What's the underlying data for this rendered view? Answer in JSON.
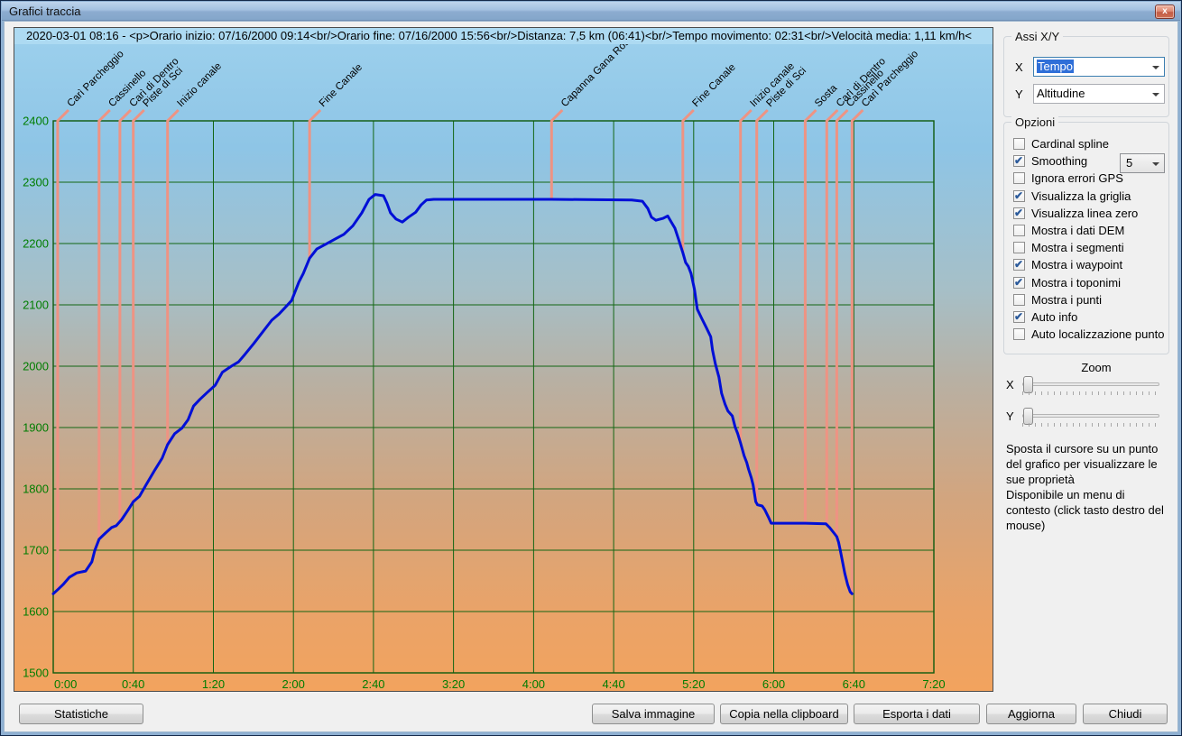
{
  "window": {
    "title": "Grafici traccia",
    "close_glyph": "x"
  },
  "info_bar": {
    "text": "2020-03-01 08:16 - <p>Orario inizio: 07/16/2000 09:14<br/>Orario fine: 07/16/2000 15:56<br/>Distanza: 7,5 km (06:41)<br/>Tempo movimento: 02:31<br/>Velocità media: 1,11 km/h<"
  },
  "axes_panel": {
    "title": "Assi X/Y",
    "x_label": "X",
    "x_value": "Tempo",
    "y_label": "Y",
    "y_value": "Altitudine"
  },
  "options_panel": {
    "title": "Opzioni",
    "smoothing_value": "5",
    "items": [
      {
        "label": "Cardinal spline",
        "checked": false,
        "has_combo": false
      },
      {
        "label": "Smoothing",
        "checked": true,
        "has_combo": true
      },
      {
        "label": "Ignora errori GPS",
        "checked": false,
        "has_combo": false
      },
      {
        "label": "Visualizza la griglia",
        "checked": true,
        "has_combo": false
      },
      {
        "label": "Visualizza linea zero",
        "checked": true,
        "has_combo": false
      },
      {
        "label": "Mostra i dati DEM",
        "checked": false,
        "has_combo": false
      },
      {
        "label": "Mostra i segmenti",
        "checked": false,
        "has_combo": false
      },
      {
        "label": "Mostra i waypoint",
        "checked": true,
        "has_combo": false
      },
      {
        "label": "Mostra i toponimi",
        "checked": true,
        "has_combo": false
      },
      {
        "label": "Mostra i punti",
        "checked": false,
        "has_combo": false
      },
      {
        "label": "Auto info",
        "checked": true,
        "has_combo": false
      },
      {
        "label": "Auto localizzazione punto",
        "checked": false,
        "has_combo": false
      }
    ]
  },
  "zoom_panel": {
    "title": "Zoom",
    "x_label": "X",
    "y_label": "Y"
  },
  "help": {
    "line1": "Sposta il cursore su un punto del grafico per visualizzare le sue proprietà",
    "line2": "Disponibile un menu di contesto (click tasto destro del mouse)"
  },
  "buttons": {
    "statistics": "Statistiche",
    "save_image": "Salva immagine",
    "copy_clipboard": "Copia nella clipboard",
    "export_data": "Esporta i dati",
    "refresh": "Aggiorna",
    "close": "Chiudi"
  },
  "chart_data": {
    "type": "line",
    "title": "",
    "xlabel": "Tempo",
    "ylabel": "Altitudine",
    "xlim_minutes": [
      0,
      440
    ],
    "x_tick_step_minutes": 40,
    "x_tick_labels": [
      "0:00",
      "0:40",
      "1:20",
      "2:00",
      "2:40",
      "3:20",
      "4:00",
      "4:40",
      "5:20",
      "6:00",
      "6:40",
      "7:20"
    ],
    "ylim": [
      1500,
      2400
    ],
    "y_tick_step": 100,
    "grid": true,
    "legend": "none",
    "colors": {
      "track": "#000fd6",
      "grid": "#136613",
      "plot_border": "#0e5a0e",
      "tick_label": "#007d00",
      "waypoint_line": "#ee9383",
      "waypoint_label": "#000000"
    },
    "series": [
      {
        "name": "Altitudine",
        "points_time_min_alt_m": [
          [
            0,
            1629
          ],
          [
            2.7,
            1637
          ],
          [
            4.9,
            1644
          ],
          [
            8.1,
            1656
          ],
          [
            11.7,
            1663
          ],
          [
            16.2,
            1666
          ],
          [
            19.3,
            1681
          ],
          [
            20.7,
            1699
          ],
          [
            22.9,
            1718
          ],
          [
            26.1,
            1728
          ],
          [
            29.2,
            1737
          ],
          [
            31.5,
            1740
          ],
          [
            34.2,
            1750
          ],
          [
            37.3,
            1765
          ],
          [
            40,
            1779
          ],
          [
            43.1,
            1788
          ],
          [
            46.3,
            1806
          ],
          [
            50.8,
            1831
          ],
          [
            54.4,
            1850
          ],
          [
            57.1,
            1872
          ],
          [
            60.7,
            1890
          ],
          [
            64.3,
            1899
          ],
          [
            67.4,
            1913
          ],
          [
            70.1,
            1935
          ],
          [
            73.3,
            1946
          ],
          [
            76.9,
            1957
          ],
          [
            80.9,
            1969
          ],
          [
            84.5,
            1990
          ],
          [
            89,
            2000
          ],
          [
            92.6,
            2007
          ],
          [
            95.7,
            2019
          ],
          [
            100.2,
            2037
          ],
          [
            104.7,
            2056
          ],
          [
            109.2,
            2075
          ],
          [
            112.8,
            2085
          ],
          [
            116,
            2096
          ],
          [
            119.1,
            2107
          ],
          [
            122.7,
            2137
          ],
          [
            124.9,
            2151
          ],
          [
            128.1,
            2176
          ],
          [
            131.7,
            2191
          ],
          [
            136.2,
            2199
          ],
          [
            140.7,
            2207
          ],
          [
            145.2,
            2215
          ],
          [
            149.7,
            2229
          ],
          [
            154.2,
            2250
          ],
          [
            157.8,
            2272
          ],
          [
            160.9,
            2280
          ],
          [
            165,
            2278
          ],
          [
            166.7,
            2266
          ],
          [
            168.5,
            2250
          ],
          [
            171.2,
            2240
          ],
          [
            174.4,
            2235
          ],
          [
            177.5,
            2243
          ],
          [
            181.1,
            2251
          ],
          [
            183.8,
            2263
          ],
          [
            186.5,
            2271
          ],
          [
            190.1,
            2272
          ],
          [
            249,
            2272
          ],
          [
            289,
            2271
          ],
          [
            294.4,
            2269
          ],
          [
            297.1,
            2257
          ],
          [
            298.9,
            2243
          ],
          [
            301.1,
            2238
          ],
          [
            304.7,
            2241
          ],
          [
            307,
            2245
          ],
          [
            308.8,
            2235
          ],
          [
            310.6,
            2225
          ],
          [
            312.4,
            2207
          ],
          [
            314.6,
            2185
          ],
          [
            316,
            2169
          ],
          [
            317.3,
            2163
          ],
          [
            318.7,
            2151
          ],
          [
            320.4,
            2125
          ],
          [
            321.8,
            2093
          ],
          [
            324,
            2078
          ],
          [
            326.3,
            2063
          ],
          [
            328.5,
            2048
          ],
          [
            329.4,
            2026
          ],
          [
            330.8,
            2004
          ],
          [
            332.6,
            1982
          ],
          [
            333.9,
            1956
          ],
          [
            335.7,
            1938
          ],
          [
            337.1,
            1927
          ],
          [
            339.3,
            1919
          ],
          [
            340.7,
            1901
          ],
          [
            342,
            1890
          ],
          [
            343.4,
            1875
          ],
          [
            345.2,
            1854
          ],
          [
            346.5,
            1843
          ],
          [
            347.4,
            1832
          ],
          [
            348.8,
            1818
          ],
          [
            349.7,
            1806
          ],
          [
            351,
            1779
          ],
          [
            351.9,
            1774
          ],
          [
            354.2,
            1772
          ],
          [
            355.5,
            1766
          ],
          [
            357.3,
            1754
          ],
          [
            358.7,
            1744
          ],
          [
            375.7,
            1744
          ],
          [
            386.1,
            1743
          ],
          [
            387.9,
            1737
          ],
          [
            390.1,
            1728
          ],
          [
            391.5,
            1722
          ],
          [
            392.4,
            1713
          ],
          [
            393.3,
            1699
          ],
          [
            394.2,
            1684
          ],
          [
            395.5,
            1662
          ],
          [
            396.9,
            1644
          ],
          [
            398.2,
            1632
          ],
          [
            399.1,
            1629
          ]
        ]
      }
    ],
    "waypoints": [
      {
        "t": 2.2,
        "label": "Carì Parcheggio"
      },
      {
        "t": 22.9,
        "label": "Cassinello"
      },
      {
        "t": 33.3,
        "label": "Carì di Dentro"
      },
      {
        "t": 40.0,
        "label": "Piste di Sci"
      },
      {
        "t": 57.1,
        "label": "Inizio canale"
      },
      {
        "t": 128.1,
        "label": "Fine Canale"
      },
      {
        "t": 249.0,
        "label": "Capanna Gana Ros"
      },
      {
        "t": 314.6,
        "label": "Fine Canale"
      },
      {
        "t": 343.4,
        "label": "Inizio canale"
      },
      {
        "t": 351.5,
        "label": "Piste di Sci"
      },
      {
        "t": 375.7,
        "label": "Sosta"
      },
      {
        "t": 386.5,
        "label": "Carì di Dentro"
      },
      {
        "t": 391.5,
        "label": "Cassinello"
      },
      {
        "t": 399.1,
        "label": "Carì Parcheggio"
      }
    ]
  }
}
